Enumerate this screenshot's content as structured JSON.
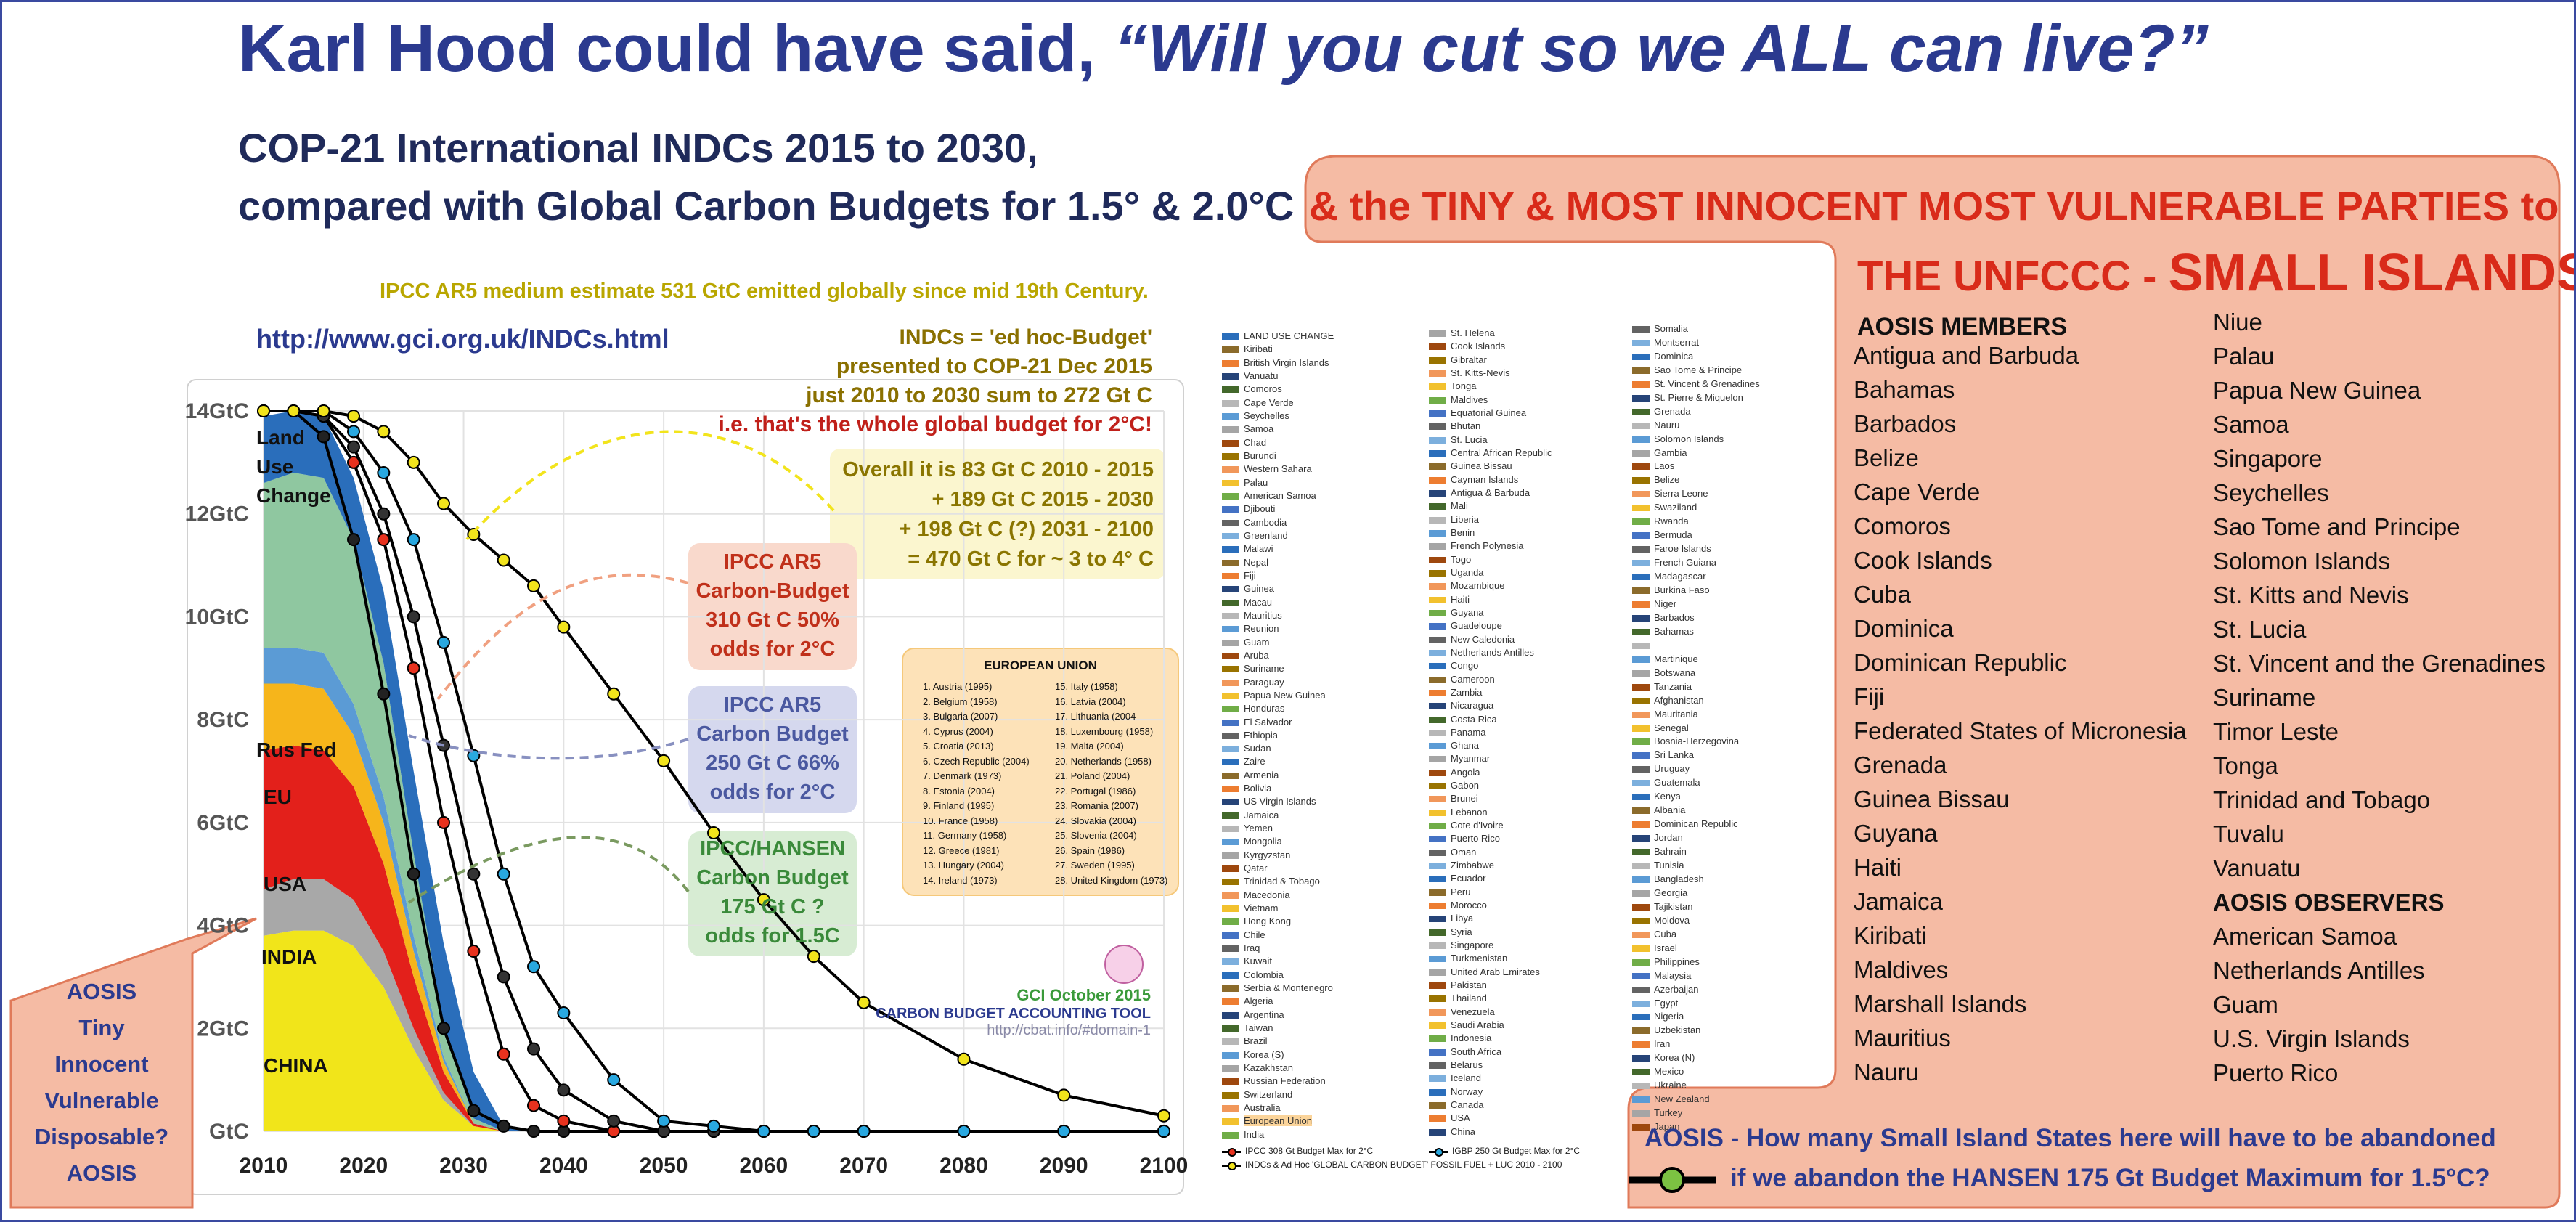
{
  "header": {
    "title_plain": "Karl Hood could have said, ",
    "title_quote": "“Will you cut so we ALL can live?”",
    "subtitle_lines": [
      "COP-21 International INDCs 2015 to 2030,",
      "compared with Global Carbon Budgets for 1.5° & 2.0°C"
    ],
    "red_line": "& the TINY & MOST INNOCENT MOST VULNERABLE PARTIES to",
    "red_line2_prefix": "THE UNFCCC - ",
    "red_line2_big": "SMALL ISLANDS"
  },
  "chart_data": {
    "type": "area",
    "stacked": true,
    "grid": true,
    "line_color": "#000000",
    "x": [
      2010,
      2013,
      2016,
      2019,
      2022,
      2025,
      2028,
      2031,
      2034,
      2037,
      2040,
      2045,
      2050,
      2055,
      2060,
      2065,
      2070,
      2080,
      2090,
      2100
    ],
    "xlim": [
      2010,
      2100
    ],
    "xticks": [
      2010,
      2020,
      2030,
      2040,
      2050,
      2060,
      2070,
      2080,
      2090,
      2100
    ],
    "ylim": [
      0,
      14
    ],
    "yticks": [
      {
        "value": 0,
        "label": "GtC"
      },
      {
        "value": 2,
        "label": "2GtC"
      },
      {
        "value": 4,
        "label": "4GtC"
      },
      {
        "value": 6,
        "label": "6GtC"
      },
      {
        "value": 8,
        "label": "8GtC"
      },
      {
        "value": 10,
        "label": "10GtC"
      },
      {
        "value": 12,
        "label": "12GtC"
      },
      {
        "value": 14,
        "label": "14GtC"
      }
    ],
    "series": [
      {
        "name": "CHINA",
        "type": "area",
        "color": "#f1e51a",
        "values": [
          3.8,
          3.9,
          3.9,
          3.6,
          2.8,
          1.6,
          0.6,
          0.1,
          0,
          0,
          0,
          0,
          0,
          0,
          0,
          0,
          0,
          0,
          0,
          0
        ]
      },
      {
        "name": "INDIA",
        "type": "area",
        "color": "#a8a8a8",
        "values": [
          0.9,
          1.0,
          1.0,
          0.9,
          0.7,
          0.4,
          0.15,
          0,
          0,
          0,
          0,
          0,
          0,
          0,
          0,
          0,
          0,
          0,
          0,
          0
        ]
      },
      {
        "name": "USA",
        "type": "area",
        "color": "#e3201b",
        "values": [
          2.7,
          2.6,
          2.5,
          2.2,
          1.7,
          1.0,
          0.4,
          0.05,
          0,
          0,
          0,
          0,
          0,
          0,
          0,
          0,
          0,
          0,
          0,
          0
        ]
      },
      {
        "name": "EU",
        "type": "area",
        "color": "#f6b51b",
        "values": [
          1.3,
          1.2,
          1.2,
          1.0,
          0.8,
          0.5,
          0.2,
          0,
          0,
          0,
          0,
          0,
          0,
          0,
          0,
          0,
          0,
          0,
          0,
          0
        ]
      },
      {
        "name": "Rus Fed",
        "type": "area",
        "color": "#5b9bd5",
        "values": [
          0.7,
          0.7,
          0.7,
          0.6,
          0.5,
          0.3,
          0.1,
          0,
          0,
          0,
          0,
          0,
          0,
          0,
          0,
          0,
          0,
          0,
          0,
          0
        ]
      },
      {
        "type": "area",
        "color": "#8fc7a0",
        "values": [
          3.2,
          3.4,
          3.4,
          3.2,
          2.6,
          1.6,
          0.6,
          0.1,
          0,
          0,
          0,
          0,
          0,
          0,
          0,
          0,
          0,
          0,
          0,
          0
        ]
      },
      {
        "name": "Land Use Change",
        "type": "area",
        "color": "#2a6ebb",
        "values": [
          1.3,
          1.2,
          1.2,
          1.2,
          1.4,
          1.6,
          1.6,
          0.9,
          0.1,
          0,
          0,
          0,
          0,
          0,
          0,
          0,
          0,
          0,
          0,
          0
        ]
      },
      {
        "type": "line",
        "color": "#222222",
        "values": [
          14,
          14,
          13.5,
          11.5,
          8.5,
          5,
          2,
          0.4,
          0.1,
          0,
          0,
          0,
          0,
          0,
          0,
          0,
          0,
          0,
          0,
          0
        ]
      },
      {
        "type": "line",
        "color": "#e8321e",
        "values": [
          14,
          14,
          13.9,
          13,
          11.5,
          9,
          6,
          3.5,
          1.5,
          0.5,
          0.2,
          0,
          0,
          0,
          0,
          0,
          0,
          0,
          0,
          0
        ]
      },
      {
        "type": "line",
        "color": "#333333",
        "values": [
          14,
          14,
          13.9,
          13.3,
          12,
          10,
          7.5,
          5,
          3,
          1.6,
          0.8,
          0.2,
          0,
          0,
          0,
          0,
          0,
          0,
          0,
          0
        ]
      },
      {
        "type": "line",
        "color": "#29a8e0",
        "values": [
          14,
          14,
          14,
          13.6,
          12.8,
          11.5,
          9.5,
          7.3,
          5,
          3.2,
          2.3,
          1.0,
          0.2,
          0.1,
          0,
          0,
          0,
          0,
          0,
          0
        ]
      },
      {
        "type": "line",
        "color": "#f2e41c",
        "values": [
          14,
          14,
          14,
          13.9,
          13.6,
          13,
          12.2,
          11.6,
          11.1,
          10.6,
          9.8,
          8.5,
          7.2,
          5.8,
          4.5,
          3.4,
          2.5,
          1.4,
          0.7,
          0.3
        ]
      }
    ],
    "annotations": {
      "ar5_note": "IPCC AR5 medium estimate 531 GtC emitted globally since mid 19th Century.",
      "url": "http://www.gci.org.uk/INDCs.html",
      "indc_note": [
        "INDCs = 'ed hoc-Budget'",
        "presented to COP-21 Dec 2015",
        "just 2010 to 2030 sum to 272 Gt C",
        "i.e. that's the whole global budget for 2°C!"
      ],
      "overall_note": [
        "Overall it is 83 Gt C 2010 - 2015",
        "+ 189 Gt C 2015 - 2030",
        "+ 198 Gt C (?) 2031 - 2100",
        "= 470 Gt C for ~ 3 to 4° C"
      ],
      "budget_boxes": [
        [
          "IPCC AR5",
          "Carbon-Budget",
          "310 Gt C 50%",
          "odds for 2°C"
        ],
        [
          "IPCC AR5",
          "Carbon Budget",
          "250 Gt C 66%",
          "odds for 2°C"
        ],
        [
          "IPCC/HANSEN",
          "Carbon Budget",
          "175 Gt C ?",
          "odds for 1.5C"
        ]
      ]
    }
  },
  "legend_columns": [
    [
      "LAND USE CHANGE",
      "Kiribati",
      "British Virgin Islands",
      "Vanuatu",
      "Comoros",
      "Cape Verde",
      "Seychelles",
      "Samoa",
      "Chad",
      "Burundi",
      "Western Sahara",
      "Palau",
      "American Samoa",
      "Djibouti",
      "Cambodia",
      "Greenland",
      "Malawi",
      "Nepal",
      "Fiji",
      "Guinea",
      "Macau",
      "Mauritius",
      "Reunion",
      "Guam",
      "Aruba",
      "Suriname",
      "Paraguay",
      "Papua New Guinea",
      "Honduras",
      "El Salvador",
      "Ethiopia",
      "Sudan",
      "Zaire",
      "Armenia",
      "Bolivia",
      "US Virgin Islands",
      "Jamaica",
      "Yemen",
      "Mongolia",
      "Kyrgyzstan",
      "Qatar",
      "Trinidad & Tobago",
      "Macedonia",
      "Vietnam",
      "Hong Kong",
      "Chile",
      "Iraq",
      "Kuwait",
      "Colombia",
      "Serbia & Montenegro",
      "Algeria",
      "Argentina",
      "Taiwan",
      "Brazil",
      "Korea (S)",
      "Kazakhstan",
      "Russian Federation",
      "Switzerland",
      "Australia",
      "European Union",
      "India"
    ],
    [
      "St. Helena",
      "Cook Islands",
      "Gibraltar",
      "St. Kitts-Nevis",
      "Tonga",
      "Maldives",
      "Equatorial Guinea",
      "Bhutan",
      "St. Lucia",
      "Central African Republic",
      "Guinea Bissau",
      "Cayman Islands",
      "Antigua & Barbuda",
      "Mali",
      "Liberia",
      "Benin",
      "French Polynesia",
      "Togo",
      "Uganda",
      "Mozambique",
      "Haiti",
      "Guyana",
      "Guadeloupe",
      "New Caledonia",
      "Netherlands Antilles",
      "Congo",
      "Cameroon",
      "Zambia",
      "Nicaragua",
      "Costa Rica",
      "Panama",
      "Ghana",
      "Myanmar",
      "Angola",
      "Gabon",
      "Brunei",
      "Lebanon",
      "Cote d'Ivoire",
      "Puerto Rico",
      "Oman",
      "Zimbabwe",
      "Ecuador",
      "Peru",
      "Morocco",
      "Libya",
      "Syria",
      "Singapore",
      "Turkmenistan",
      "United Arab Emirates",
      "Pakistan",
      "Thailand",
      "Venezuela",
      "Saudi Arabia",
      "Indonesia",
      "South Africa",
      "Belarus",
      "Iceland",
      "Norway",
      "Canada",
      "USA",
      "China"
    ],
    [
      "Somalia",
      "Montserrat",
      "Dominica",
      "Sao Tome & Principe",
      "St. Vincent & Grenadines",
      "St. Pierre & Miquelon",
      "Grenada",
      "Nauru",
      "Solomon Islands",
      "Gambia",
      "Laos",
      "Belize",
      "Sierra Leone",
      "Swaziland",
      "Rwanda",
      "Bermuda",
      "Faroe Islands",
      "French Guiana",
      "Madagascar",
      "Burkina Faso",
      "Niger",
      "Barbados",
      "Bahamas",
      null,
      "Martinique",
      "Botswana",
      "Tanzania",
      "Afghanistan",
      "Mauritania",
      "Senegal",
      "Bosnia-Herzegovina",
      "Sri Lanka",
      "Uruguay",
      "Guatemala",
      "Kenya",
      "Albania",
      "Dominican Republic",
      "Jordan",
      "Bahrain",
      "Tunisia",
      "Bangladesh",
      "Georgia",
      "Tajikistan",
      "Moldova",
      "Cuba",
      "Israel",
      "Philippines",
      "Malaysia",
      "Azerbaijan",
      "Egypt",
      "Nigeria",
      "Uzbekistan",
      "Iran",
      "Korea (N)",
      "Mexico",
      "Ukraine",
      "New Zealand",
      "Turkey",
      "Japan"
    ]
  ],
  "legend_lines": [
    "IPCC 308 Gt Budget Max for 2°C",
    "INDCs & Ad Hoc 'GLOBAL CARBON BUDGET' FOSSIL FUEL + LUC 2010 - 2100",
    "IGBP 250 Gt Budget Max for 2°C"
  ],
  "eu_box": {
    "title": "EUROPEAN UNION",
    "members": [
      "1.  Austria (1995)",
      "2.  Belgium (1958)",
      "3.  Bulgaria (2007)",
      "4.  Cyprus (2004)",
      "5.  Croatia (2013)",
      "6.  Czech Republic (2004)",
      "7.  Denmark (1973)",
      "8.  Estonia (2004)",
      "9.  Finland (1995)",
      "10. France (1958)",
      "11. Germany (1958)",
      "12. Greece (1981)",
      "13. Hungary (2004)",
      "14. Ireland (1973)",
      "15. Italy (1958)",
      "16. Latvia (2004)",
      "17. Lithuania (2004",
      "18. Luxembourg (1958)",
      "19. Malta (2004)",
      "20. Netherlands (1958)",
      "21. Poland (2004)",
      "22. Portugal (1986)",
      "23. Romania (2007)",
      "24. Slovakia (2004)",
      "25. Slovenia (2004)",
      "26. Spain (1986)",
      "27. Sweden (1995)",
      "28. United Kingdom (1973)"
    ]
  },
  "credit": [
    "GCI  October 2015",
    "CARBON BUDGET ACCOUNTING TOOL",
    "http://cbat.info/#domain-1"
  ],
  "aosis": {
    "members_title": "AOSIS MEMBERS",
    "members": [
      "Antigua and Barbuda",
      "Bahamas",
      "Barbados",
      "Belize",
      "Cape Verde",
      "Comoros",
      "Cook Islands",
      "Cuba",
      "Dominica",
      "Dominican Republic",
      "Fiji",
      "Federated States of Micronesia",
      "Grenada",
      "Guinea Bissau",
      "Guyana",
      "Haiti",
      "Jamaica",
      "Kiribati",
      "Maldives",
      "Marshall Islands",
      "Mauritius",
      "Nauru",
      "Niue",
      "Palau",
      "Papua New Guinea",
      "Samoa",
      "Singapore",
      "Seychelles",
      "Sao Tome and Principe",
      "Solomon Islands",
      "St. Kitts and Nevis",
      "St. Lucia",
      "St. Vincent and the Grenadines",
      "Suriname",
      "Timor Leste",
      "Tonga",
      "Trinidad and Tobago",
      "Tuvalu",
      "Vanuatu"
    ],
    "observers_title": "AOSIS OBSERVERS",
    "observers": [
      "American Samoa",
      "Netherlands Antilles",
      "Guam",
      "U.S. Virgin Islands",
      "Puerto Rico"
    ]
  },
  "aosis_side": [
    "AOSIS",
    "Tiny",
    "Innocent",
    "Vulnerable",
    "Disposable?",
    "AOSIS"
  ],
  "bottom_question": [
    "AOSIS - How many Small Island States here will have to be abandoned",
    "if we abandon the HANSEN 175 Gt Budget Maximum for 1.5°C?"
  ]
}
